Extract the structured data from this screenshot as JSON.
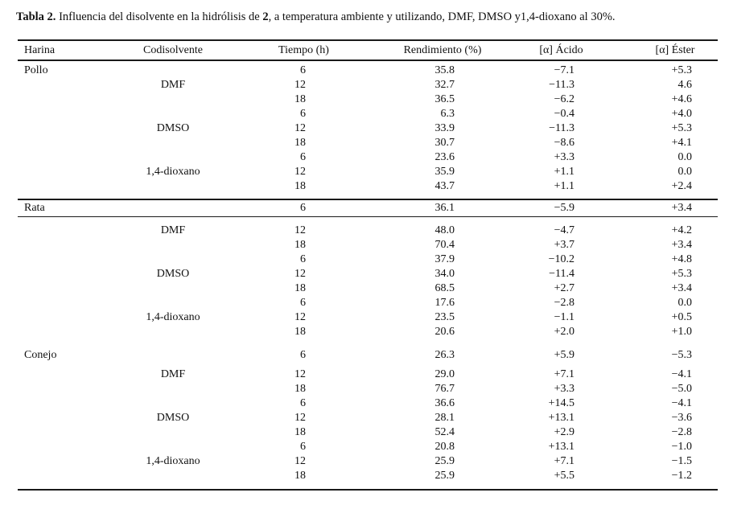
{
  "caption": {
    "label": "Tabla 2.",
    "before_bold": " Influencia del disolvente en la hidrólisis de ",
    "bold_compound": "2",
    "after_bold": ", a temperatura ambiente y utilizando, DMF, DMSO y1,4-dioxano al 30%."
  },
  "table": {
    "headers": [
      "Harina",
      "Codisolvente",
      "Tiempo (h)",
      "Rendimiento (%)",
      "[α] Ácido",
      "[α] Éster"
    ],
    "groups": [
      {
        "harina": "Pollo",
        "rows": [
          {
            "codisolvente": "",
            "tiempo": "6",
            "rendimiento": "35.8",
            "acido": "−7.1",
            "ester": "+5.3"
          },
          {
            "codisolvente": "DMF",
            "tiempo": "12",
            "rendimiento": "32.7",
            "acido": "−11.3",
            "ester": "4.6"
          },
          {
            "codisolvente": "",
            "tiempo": "18",
            "rendimiento": "36.5",
            "acido": "−6.2",
            "ester": "+4.6"
          },
          {
            "codisolvente": "",
            "tiempo": "6",
            "rendimiento": "6.3",
            "acido": "−0.4",
            "ester": "+4.0"
          },
          {
            "codisolvente": "DMSO",
            "tiempo": "12",
            "rendimiento": "33.9",
            "acido": "−11.3",
            "ester": "+5.3"
          },
          {
            "codisolvente": "",
            "tiempo": "18",
            "rendimiento": "30.7",
            "acido": "−8.6",
            "ester": "+4.1"
          },
          {
            "codisolvente": "",
            "tiempo": "6",
            "rendimiento": "23.6",
            "acido": "+3.3",
            "ester": "0.0"
          },
          {
            "codisolvente": "1,4-dioxano",
            "tiempo": "12",
            "rendimiento": "35.9",
            "acido": "+1.1",
            "ester": "0.0"
          },
          {
            "codisolvente": "",
            "tiempo": "18",
            "rendimiento": "43.7",
            "acido": "+1.1",
            "ester": "+2.4"
          }
        ]
      },
      {
        "harina": "Rata",
        "rows": [
          {
            "codisolvente": "",
            "tiempo": "6",
            "rendimiento": "36.1",
            "acido": "−5.9",
            "ester": "+3.4"
          },
          {
            "codisolvente": "DMF",
            "tiempo": "12",
            "rendimiento": "48.0",
            "acido": "−4.7",
            "ester": "+4.2"
          },
          {
            "codisolvente": "",
            "tiempo": "18",
            "rendimiento": "70.4",
            "acido": "+3.7",
            "ester": "+3.4"
          },
          {
            "codisolvente": "",
            "tiempo": "6",
            "rendimiento": "37.9",
            "acido": "−10.2",
            "ester": "+4.8"
          },
          {
            "codisolvente": "DMSO",
            "tiempo": "12",
            "rendimiento": "34.0",
            "acido": "−11.4",
            "ester": "+5.3"
          },
          {
            "codisolvente": "",
            "tiempo": "18",
            "rendimiento": "68.5",
            "acido": "+2.7",
            "ester": "+3.4"
          },
          {
            "codisolvente": "",
            "tiempo": "6",
            "rendimiento": "17.6",
            "acido": "−2.8",
            "ester": "0.0"
          },
          {
            "codisolvente": "1,4-dioxano",
            "tiempo": "12",
            "rendimiento": "23.5",
            "acido": "−1.1",
            "ester": "+0.5"
          },
          {
            "codisolvente": "",
            "tiempo": "18",
            "rendimiento": "20.6",
            "acido": "+2.0",
            "ester": "+1.0"
          }
        ]
      },
      {
        "harina": "Conejo",
        "rows": [
          {
            "codisolvente": "",
            "tiempo": "6",
            "rendimiento": "26.3",
            "acido": "+5.9",
            "ester": "−5.3"
          },
          {
            "codisolvente": "DMF",
            "tiempo": "12",
            "rendimiento": "29.0",
            "acido": "+7.1",
            "ester": "−4.1"
          },
          {
            "codisolvente": "",
            "tiempo": "18",
            "rendimiento": "76.7",
            "acido": "+3.3",
            "ester": "−5.0"
          },
          {
            "codisolvente": "",
            "tiempo": "6",
            "rendimiento": "36.6",
            "acido": "+14.5",
            "ester": "−4.1"
          },
          {
            "codisolvente": "DMSO",
            "tiempo": "12",
            "rendimiento": "28.1",
            "acido": "+13.1",
            "ester": "−3.6"
          },
          {
            "codisolvente": "",
            "tiempo": "18",
            "rendimiento": "52.4",
            "acido": "+2.9",
            "ester": "−2.8"
          },
          {
            "codisolvente": "",
            "tiempo": "6",
            "rendimiento": "20.8",
            "acido": "+13.1",
            "ester": "−1.0"
          },
          {
            "codisolvente": "1,4-dioxano",
            "tiempo": "12",
            "rendimiento": "25.9",
            "acido": "+7.1",
            "ester": "−1.5"
          },
          {
            "codisolvente": "",
            "tiempo": "18",
            "rendimiento": "25.9",
            "acido": "+5.5",
            "ester": "−1.2"
          }
        ]
      }
    ]
  }
}
